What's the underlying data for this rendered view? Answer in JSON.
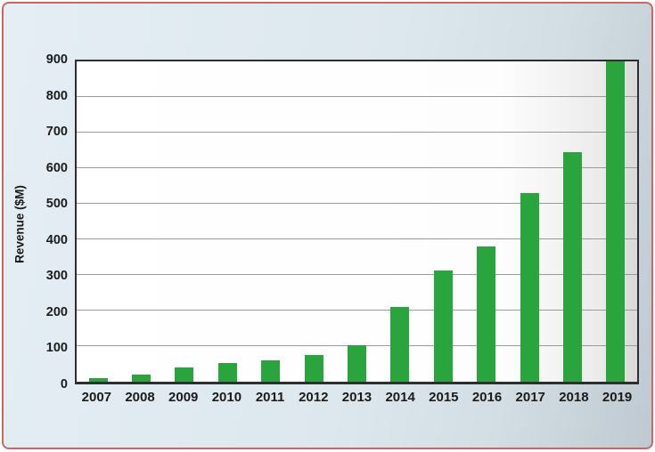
{
  "chart_data": {
    "type": "bar",
    "categories": [
      "2007",
      "2008",
      "2009",
      "2010",
      "2011",
      "2012",
      "2013",
      "2014",
      "2015",
      "2016",
      "2017",
      "2018",
      "2019"
    ],
    "values": [
      10,
      20,
      40,
      52,
      60,
      75,
      102,
      210,
      312,
      380,
      530,
      645,
      900
    ],
    "title": "",
    "xlabel": "",
    "ylabel": "Revenue ($M)",
    "ylim": [
      0,
      900
    ],
    "yticks": [
      0,
      100,
      200,
      300,
      400,
      500,
      600,
      700,
      800,
      900
    ],
    "grid": true,
    "legend": "none",
    "bar_color": "#2aa43c"
  },
  "colors": {
    "bar_green": "#2aa43c",
    "card_border_red": "#cc6663",
    "card_background_blue": "#dde8ee",
    "gridline_gray": "#9a9a9a",
    "axis_frame_dark": "#2e2e2e",
    "text_dark": "#1b1b1b"
  }
}
